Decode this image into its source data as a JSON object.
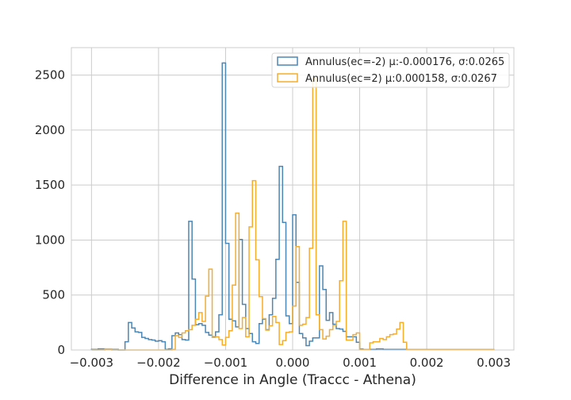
{
  "chart_data": {
    "type": "histogram-step",
    "title": "",
    "xlabel": "Difference in Angle (Traccc - Athena)",
    "ylabel": "",
    "xlim": [
      -0.0033,
      0.0033
    ],
    "ylim": [
      0,
      2750
    ],
    "grid": true,
    "legend_position": "top-right",
    "x_ticks": [
      -0.003,
      -0.002,
      -0.001,
      0.0,
      0.001,
      0.002,
      0.003
    ],
    "x_tick_labels": [
      "−0.003",
      "−0.002",
      "−0.001",
      "0.000",
      "0.001",
      "0.002",
      "0.003"
    ],
    "y_ticks": [
      0,
      500,
      1000,
      1500,
      2000,
      2500
    ],
    "y_tick_labels": [
      "0",
      "500",
      "1000",
      "1500",
      "2000",
      "2500"
    ],
    "series": [
      {
        "name": "Annulus(ec=-2) μ:-0.000176, σ:0.0265",
        "color": "#4c86b5",
        "bin_edges": [
          -0.003,
          -0.0029,
          -0.0028,
          -0.0027,
          -0.0026,
          -0.0025,
          -0.00245,
          -0.0024,
          -0.00235,
          -0.0023,
          -0.00225,
          -0.0022,
          -0.00215,
          -0.0021,
          -0.00205,
          -0.002,
          -0.00195,
          -0.0019,
          -0.00185,
          -0.0018,
          -0.00175,
          -0.0017,
          -0.00165,
          -0.0016,
          -0.00155,
          -0.0015,
          -0.00145,
          -0.0014,
          -0.00135,
          -0.0013,
          -0.00125,
          -0.0012,
          -0.00115,
          -0.0011,
          -0.00105,
          -0.001,
          -0.00095,
          -0.0009,
          -0.00085,
          -0.0008,
          -0.00075,
          -0.0007,
          -0.00065,
          -0.0006,
          -0.00055,
          -0.0005,
          -0.00045,
          -0.0004,
          -0.00035,
          -0.0003,
          -0.00025,
          -0.0002,
          -0.00015,
          -0.0001,
          -5e-05,
          0.0,
          5e-05,
          0.0001,
          0.00015,
          0.0002,
          0.00025,
          0.0003,
          0.00035,
          0.0004,
          0.00045,
          0.0005,
          0.00055,
          0.0006,
          0.00065,
          0.0007,
          0.00075,
          0.0008,
          0.00085,
          0.0009,
          0.00095,
          0.001,
          0.00105,
          0.0011,
          0.00115,
          0.0012,
          0.00125,
          0.0013,
          0.00135,
          0.0014,
          0.00145,
          0.0015,
          0.00155,
          0.0016,
          0.00165,
          0.0017,
          0.00175,
          0.0018,
          0.00185,
          0.0019,
          0.002,
          0.0021,
          0.0022,
          0.0023,
          0.0024,
          0.0025,
          0.003
        ],
        "counts": [
          5,
          10,
          5,
          5,
          0,
          75,
          250,
          200,
          165,
          160,
          115,
          105,
          95,
          90,
          80,
          85,
          75,
          5,
          10,
          130,
          155,
          140,
          95,
          90,
          1170,
          645,
          230,
          240,
          225,
          160,
          135,
          120,
          165,
          320,
          2610,
          970,
          280,
          265,
          210,
          1005,
          415,
          195,
          150,
          75,
          60,
          240,
          280,
          185,
          320,
          470,
          825,
          1670,
          1160,
          310,
          240,
          1230,
          615,
          150,
          110,
          40,
          80,
          110,
          110,
          765,
          550,
          270,
          340,
          235,
          195,
          190,
          170,
          120,
          120,
          120,
          70,
          10,
          5,
          5,
          5,
          5,
          10,
          10,
          5,
          5,
          5,
          5,
          5,
          5,
          5,
          5,
          5,
          5,
          5,
          5,
          5,
          5,
          5,
          5,
          5,
          5
        ]
      },
      {
        "name": "Annulus(ec=2) μ:0.000158, σ:0.0267",
        "color": "#f5ad2a",
        "bin_edges": [
          -0.003,
          -0.0028,
          -0.0027,
          -0.0018,
          -0.00175,
          -0.0017,
          -0.00165,
          -0.0016,
          -0.00155,
          -0.0015,
          -0.00145,
          -0.0014,
          -0.00135,
          -0.0013,
          -0.00125,
          -0.0012,
          -0.00115,
          -0.0011,
          -0.00105,
          -0.001,
          -0.00095,
          -0.0009,
          -0.00085,
          -0.0008,
          -0.00075,
          -0.0007,
          -0.00065,
          -0.0006,
          -0.00055,
          -0.0005,
          -0.00045,
          -0.0004,
          -0.00035,
          -0.0003,
          -0.00025,
          -0.0002,
          -0.00015,
          -0.0001,
          -5e-05,
          0.0,
          5e-05,
          0.0001,
          0.00015,
          0.0002,
          0.00025,
          0.0003,
          0.00035,
          0.0004,
          0.00045,
          0.0005,
          0.00055,
          0.0006,
          0.00065,
          0.0007,
          0.00075,
          0.0008,
          0.00085,
          0.0009,
          0.00095,
          0.001,
          0.00105,
          0.0011,
          0.00115,
          0.0012,
          0.00125,
          0.0013,
          0.00135,
          0.0014,
          0.00145,
          0.0015,
          0.00155,
          0.0016,
          0.00165,
          0.0017,
          0.00175,
          0.0018,
          0.00185,
          0.0019,
          0.00195,
          0.002,
          0.00205,
          0.0021,
          0.00215,
          0.0022,
          0.00225,
          0.0023,
          0.00235,
          0.0024,
          0.00245,
          0.0025,
          0.00255,
          0.003
        ],
        "counts": [
          0,
          10,
          0,
          5,
          130,
          115,
          155,
          175,
          185,
          225,
          280,
          340,
          260,
          490,
          735,
          115,
          120,
          95,
          45,
          115,
          175,
          590,
          1245,
          195,
          295,
          120,
          1120,
          1540,
          820,
          485,
          285,
          180,
          220,
          305,
          250,
          50,
          85,
          160,
          165,
          400,
          940,
          225,
          235,
          295,
          925,
          2470,
          320,
          185,
          100,
          125,
          185,
          225,
          260,
          630,
          1170,
          90,
          90,
          140,
          155,
          5,
          5,
          5,
          65,
          75,
          75,
          105,
          95,
          120,
          140,
          145,
          190,
          250,
          70,
          5,
          5,
          5,
          5,
          5,
          5,
          5,
          5,
          5,
          5,
          5,
          5,
          5,
          5,
          5,
          5,
          5,
          5
        ]
      }
    ]
  }
}
